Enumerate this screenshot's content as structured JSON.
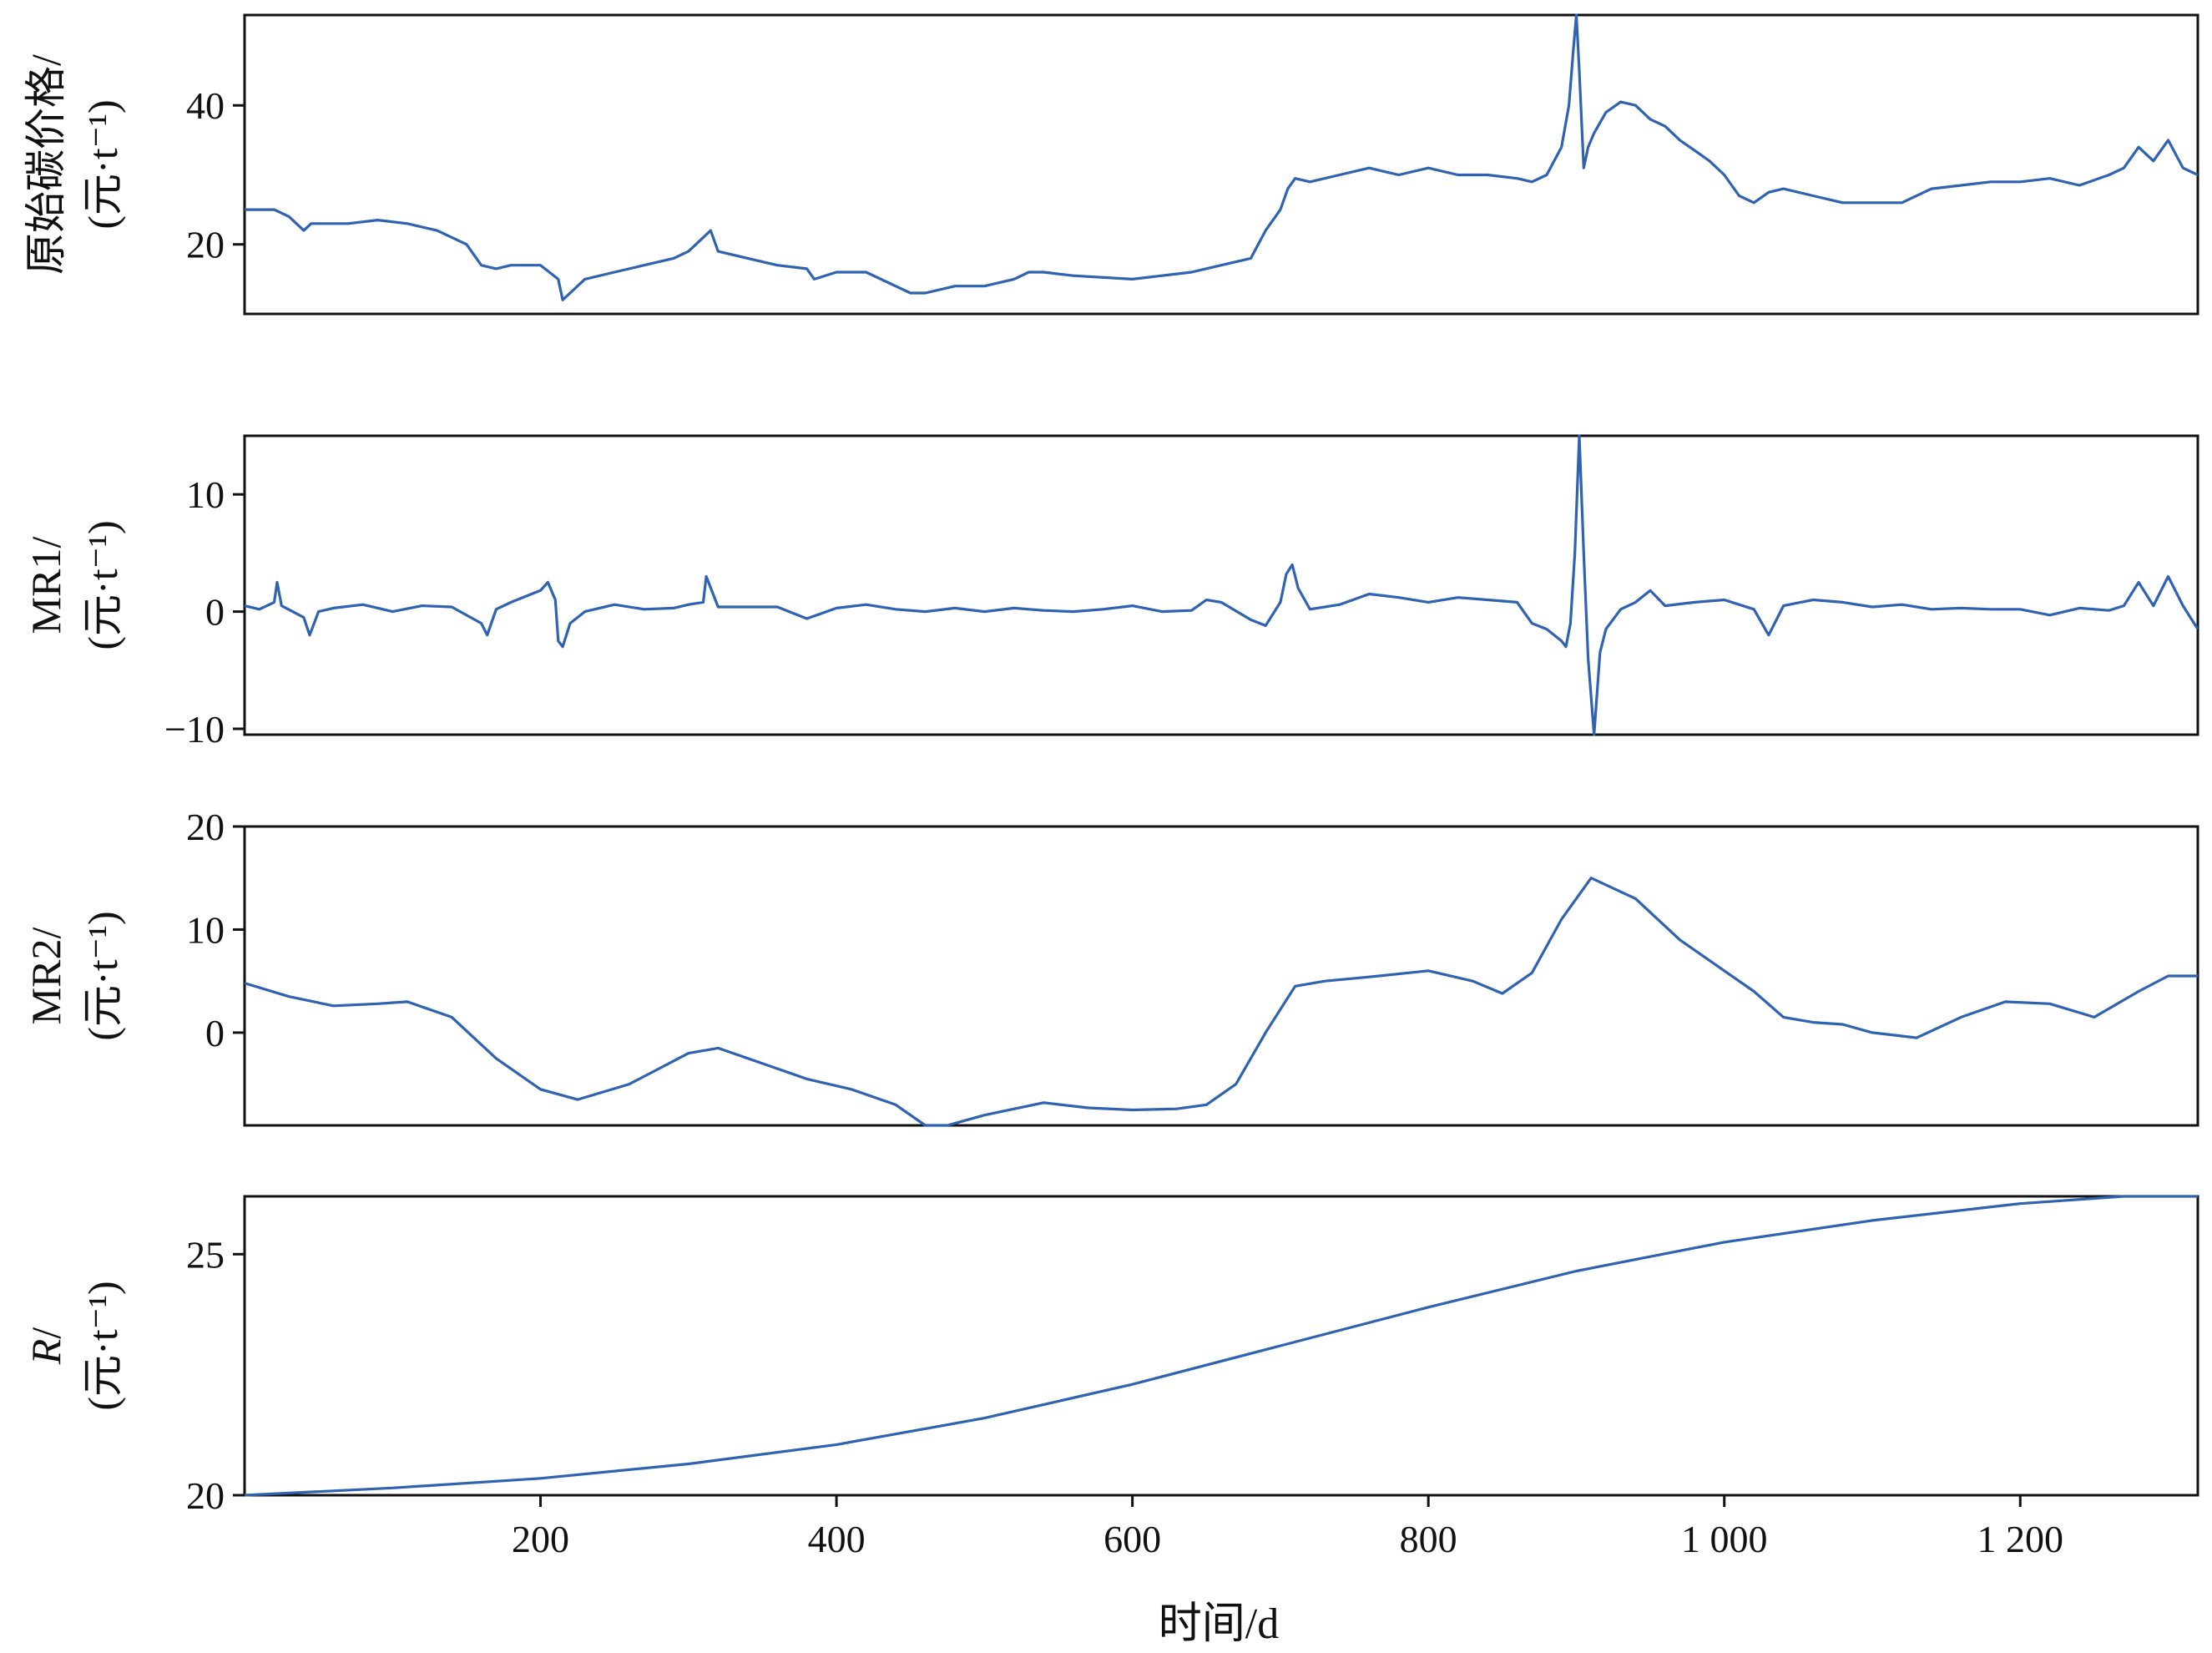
{
  "chart_data": [
    {
      "type": "line",
      "ylabel": [
        "原始碳价格/",
        "(元·t⁻¹)"
      ],
      "ylim": [
        10,
        53
      ],
      "yticks": [
        "20",
        "40"
      ],
      "xlim": [
        0,
        1320
      ],
      "series": [
        {
          "x": [
            0,
            20,
            30,
            40,
            45,
            55,
            60,
            70,
            90,
            110,
            130,
            150,
            160,
            170,
            180,
            200,
            212,
            215,
            220,
            230,
            250,
            270,
            290,
            300,
            310,
            315,
            320,
            340,
            360,
            380,
            385,
            400,
            420,
            440,
            450,
            460,
            480,
            500,
            520,
            530,
            540,
            560,
            600,
            620,
            640,
            660,
            680,
            690,
            700,
            705,
            710,
            720,
            740,
            760,
            780,
            800,
            820,
            840,
            860,
            870,
            880,
            885,
            890,
            895,
            898,
            900,
            902,
            905,
            908,
            912,
            920,
            930,
            940,
            950,
            960,
            970,
            980,
            990,
            1000,
            1010,
            1020,
            1030,
            1040,
            1060,
            1080,
            1100,
            1120,
            1140,
            1160,
            1180,
            1200,
            1220,
            1240,
            1260,
            1270,
            1280,
            1290,
            1300,
            1310,
            1320
          ],
          "y": [
            25,
            25,
            24,
            22,
            23,
            23,
            23,
            23,
            23.5,
            23,
            22,
            20,
            17,
            16.5,
            17,
            17,
            15,
            12,
            13,
            15,
            16,
            17,
            18,
            19,
            21,
            22,
            19,
            18,
            17,
            16.5,
            15,
            16,
            16,
            14,
            13,
            13,
            14,
            14,
            15,
            16,
            16,
            15.5,
            15,
            15.5,
            16,
            17,
            18,
            22,
            25,
            28,
            29.5,
            29,
            30,
            31,
            30,
            31,
            30,
            30,
            29.5,
            29,
            30,
            32,
            34,
            40,
            48,
            53,
            45,
            31,
            34,
            36,
            39,
            40.5,
            40,
            38,
            37,
            35,
            33.5,
            32,
            30,
            27,
            26,
            27.5,
            28,
            27,
            26,
            26,
            26,
            28,
            28.5,
            29,
            29,
            29.5,
            28.5,
            30,
            31,
            34,
            32,
            35,
            31,
            30
          ]
        }
      ]
    },
    {
      "type": "line",
      "ylabel": [
        "MR1/",
        "(元·t⁻¹)"
      ],
      "ylim": [
        -10.5,
        15
      ],
      "yticks": [
        "−10",
        "0",
        "10"
      ],
      "xlim": [
        0,
        1320
      ],
      "series": [
        {
          "x": [
            0,
            10,
            20,
            22,
            25,
            40,
            44,
            50,
            60,
            80,
            100,
            120,
            140,
            160,
            164,
            170,
            180,
            200,
            205,
            210,
            212,
            215,
            220,
            230,
            250,
            270,
            290,
            300,
            310,
            312,
            320,
            340,
            360,
            380,
            400,
            420,
            440,
            460,
            480,
            500,
            520,
            540,
            560,
            580,
            600,
            620,
            640,
            650,
            660,
            680,
            690,
            700,
            704,
            708,
            712,
            720,
            740,
            760,
            780,
            800,
            820,
            840,
            860,
            870,
            880,
            890,
            893,
            896,
            899,
            902,
            905,
            908,
            912,
            916,
            920,
            930,
            940,
            950,
            960,
            980,
            1000,
            1020,
            1030,
            1040,
            1060,
            1080,
            1100,
            1120,
            1140,
            1160,
            1180,
            1200,
            1220,
            1240,
            1260,
            1270,
            1280,
            1290,
            1300,
            1310,
            1320
          ],
          "y": [
            0.5,
            0.2,
            0.8,
            2.5,
            0.5,
            -0.5,
            -2,
            0,
            0.3,
            0.6,
            0,
            0.5,
            0.4,
            -1,
            -2,
            0.2,
            0.8,
            1.8,
            2.5,
            1,
            -2.5,
            -3,
            -1,
            0,
            0.6,
            0.2,
            0.3,
            0.6,
            0.8,
            3,
            0.4,
            0.4,
            0.4,
            -0.6,
            0.3,
            0.6,
            0.2,
            0,
            0.3,
            0,
            0.3,
            0.1,
            0,
            0.2,
            0.5,
            0,
            0.1,
            1,
            0.8,
            -0.7,
            -1.2,
            0.8,
            3.2,
            4,
            2,
            0.2,
            0.6,
            1.5,
            1.2,
            0.8,
            1.2,
            1,
            0.8,
            -1,
            -1.5,
            -2.5,
            -3,
            -1,
            5,
            15,
            5,
            -4,
            -10.5,
            -3.5,
            -1.5,
            0.2,
            0.8,
            1.8,
            0.5,
            0.8,
            1,
            0.2,
            -2,
            0.5,
            1,
            0.8,
            0.4,
            0.6,
            0.2,
            0.3,
            0.2,
            0.2,
            -0.3,
            0.3,
            0.1,
            0.5,
            2.5,
            0.5,
            3,
            0.5,
            -1.5
          ]
        }
      ]
    },
    {
      "type": "line",
      "ylabel": [
        "MR2/",
        "(元·t⁻¹)"
      ],
      "ylim": [
        -9,
        20
      ],
      "yticks": [
        "0",
        "10",
        "20"
      ],
      "xlim": [
        0,
        1320
      ],
      "series": [
        {
          "x": [
            0,
            30,
            60,
            90,
            110,
            140,
            170,
            200,
            225,
            260,
            300,
            320,
            350,
            380,
            410,
            440,
            460,
            475,
            500,
            540,
            570,
            600,
            630,
            650,
            670,
            690,
            710,
            730,
            760,
            800,
            830,
            850,
            870,
            890,
            910,
            940,
            970,
            1000,
            1020,
            1040,
            1060,
            1080,
            1100,
            1130,
            1160,
            1190,
            1220,
            1250,
            1280,
            1300,
            1320
          ],
          "y": [
            4.8,
            3.5,
            2.6,
            2.8,
            3,
            1.5,
            -2.5,
            -5.5,
            -6.5,
            -5,
            -2,
            -1.5,
            -3,
            -4.5,
            -5.5,
            -7,
            -9,
            -9,
            -8,
            -6.8,
            -7.3,
            -7.5,
            -7.4,
            -7,
            -5,
            0,
            4.5,
            5,
            5.4,
            6,
            5,
            3.8,
            5.8,
            11,
            15,
            13,
            9,
            6,
            4,
            1.5,
            1,
            0.8,
            0,
            -0.5,
            1.5,
            3,
            2.8,
            1.5,
            4,
            5.5,
            5.5
          ]
        }
      ]
    },
    {
      "type": "line",
      "ylabel": [
        "R/",
        "(元·t⁻¹)"
      ],
      "ylabel_italic_part": "R",
      "ylim": [
        20,
        26.2
      ],
      "yticks": [
        "20",
        "25"
      ],
      "xlim": [
        0,
        1320
      ],
      "xticks": [
        "200",
        "400",
        "600",
        "800",
        "1 000",
        "1 200"
      ],
      "xtick_values": [
        200,
        400,
        600,
        800,
        1000,
        1200
      ],
      "series": [
        {
          "x": [
            0,
            100,
            200,
            300,
            400,
            500,
            600,
            700,
            800,
            900,
            1000,
            1100,
            1200,
            1270,
            1320
          ],
          "y": [
            20.0,
            20.15,
            20.35,
            20.65,
            21.05,
            21.6,
            22.3,
            23.1,
            23.9,
            24.65,
            25.25,
            25.7,
            26.05,
            26.2,
            26.2
          ]
        }
      ]
    }
  ],
  "xlabel": "时间/d"
}
